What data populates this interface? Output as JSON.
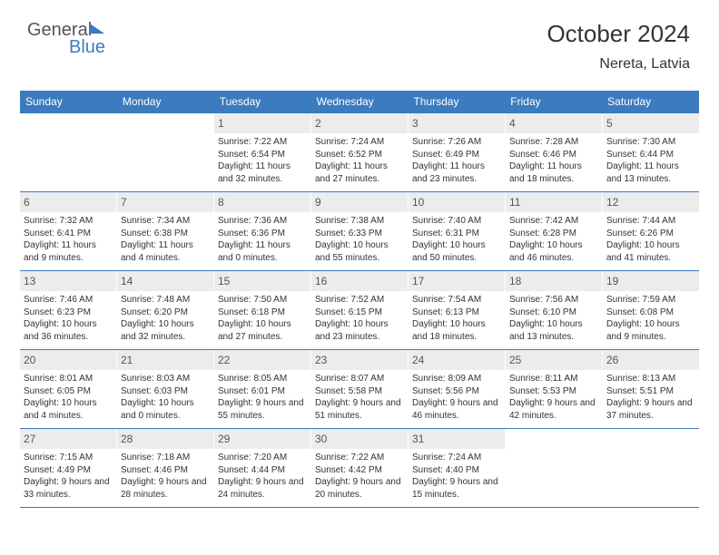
{
  "brand": {
    "part1": "General",
    "part2": "Blue"
  },
  "header": {
    "title": "October 2024",
    "location": "Nereta, Latvia"
  },
  "colors": {
    "accent": "#3b7bbf",
    "day_num_bg": "#ececec",
    "text": "#333333",
    "logo_gray": "#555555",
    "background": "#ffffff"
  },
  "days_of_week": [
    "Sunday",
    "Monday",
    "Tuesday",
    "Wednesday",
    "Thursday",
    "Friday",
    "Saturday"
  ],
  "weeks": [
    [
      {},
      {},
      {
        "n": "1",
        "sunrise": "Sunrise: 7:22 AM",
        "sunset": "Sunset: 6:54 PM",
        "daylight": "Daylight: 11 hours and 32 minutes."
      },
      {
        "n": "2",
        "sunrise": "Sunrise: 7:24 AM",
        "sunset": "Sunset: 6:52 PM",
        "daylight": "Daylight: 11 hours and 27 minutes."
      },
      {
        "n": "3",
        "sunrise": "Sunrise: 7:26 AM",
        "sunset": "Sunset: 6:49 PM",
        "daylight": "Daylight: 11 hours and 23 minutes."
      },
      {
        "n": "4",
        "sunrise": "Sunrise: 7:28 AM",
        "sunset": "Sunset: 6:46 PM",
        "daylight": "Daylight: 11 hours and 18 minutes."
      },
      {
        "n": "5",
        "sunrise": "Sunrise: 7:30 AM",
        "sunset": "Sunset: 6:44 PM",
        "daylight": "Daylight: 11 hours and 13 minutes."
      }
    ],
    [
      {
        "n": "6",
        "sunrise": "Sunrise: 7:32 AM",
        "sunset": "Sunset: 6:41 PM",
        "daylight": "Daylight: 11 hours and 9 minutes."
      },
      {
        "n": "7",
        "sunrise": "Sunrise: 7:34 AM",
        "sunset": "Sunset: 6:38 PM",
        "daylight": "Daylight: 11 hours and 4 minutes."
      },
      {
        "n": "8",
        "sunrise": "Sunrise: 7:36 AM",
        "sunset": "Sunset: 6:36 PM",
        "daylight": "Daylight: 11 hours and 0 minutes."
      },
      {
        "n": "9",
        "sunrise": "Sunrise: 7:38 AM",
        "sunset": "Sunset: 6:33 PM",
        "daylight": "Daylight: 10 hours and 55 minutes."
      },
      {
        "n": "10",
        "sunrise": "Sunrise: 7:40 AM",
        "sunset": "Sunset: 6:31 PM",
        "daylight": "Daylight: 10 hours and 50 minutes."
      },
      {
        "n": "11",
        "sunrise": "Sunrise: 7:42 AM",
        "sunset": "Sunset: 6:28 PM",
        "daylight": "Daylight: 10 hours and 46 minutes."
      },
      {
        "n": "12",
        "sunrise": "Sunrise: 7:44 AM",
        "sunset": "Sunset: 6:26 PM",
        "daylight": "Daylight: 10 hours and 41 minutes."
      }
    ],
    [
      {
        "n": "13",
        "sunrise": "Sunrise: 7:46 AM",
        "sunset": "Sunset: 6:23 PM",
        "daylight": "Daylight: 10 hours and 36 minutes."
      },
      {
        "n": "14",
        "sunrise": "Sunrise: 7:48 AM",
        "sunset": "Sunset: 6:20 PM",
        "daylight": "Daylight: 10 hours and 32 minutes."
      },
      {
        "n": "15",
        "sunrise": "Sunrise: 7:50 AM",
        "sunset": "Sunset: 6:18 PM",
        "daylight": "Daylight: 10 hours and 27 minutes."
      },
      {
        "n": "16",
        "sunrise": "Sunrise: 7:52 AM",
        "sunset": "Sunset: 6:15 PM",
        "daylight": "Daylight: 10 hours and 23 minutes."
      },
      {
        "n": "17",
        "sunrise": "Sunrise: 7:54 AM",
        "sunset": "Sunset: 6:13 PM",
        "daylight": "Daylight: 10 hours and 18 minutes."
      },
      {
        "n": "18",
        "sunrise": "Sunrise: 7:56 AM",
        "sunset": "Sunset: 6:10 PM",
        "daylight": "Daylight: 10 hours and 13 minutes."
      },
      {
        "n": "19",
        "sunrise": "Sunrise: 7:59 AM",
        "sunset": "Sunset: 6:08 PM",
        "daylight": "Daylight: 10 hours and 9 minutes."
      }
    ],
    [
      {
        "n": "20",
        "sunrise": "Sunrise: 8:01 AM",
        "sunset": "Sunset: 6:05 PM",
        "daylight": "Daylight: 10 hours and 4 minutes."
      },
      {
        "n": "21",
        "sunrise": "Sunrise: 8:03 AM",
        "sunset": "Sunset: 6:03 PM",
        "daylight": "Daylight: 10 hours and 0 minutes."
      },
      {
        "n": "22",
        "sunrise": "Sunrise: 8:05 AM",
        "sunset": "Sunset: 6:01 PM",
        "daylight": "Daylight: 9 hours and 55 minutes."
      },
      {
        "n": "23",
        "sunrise": "Sunrise: 8:07 AM",
        "sunset": "Sunset: 5:58 PM",
        "daylight": "Daylight: 9 hours and 51 minutes."
      },
      {
        "n": "24",
        "sunrise": "Sunrise: 8:09 AM",
        "sunset": "Sunset: 5:56 PM",
        "daylight": "Daylight: 9 hours and 46 minutes."
      },
      {
        "n": "25",
        "sunrise": "Sunrise: 8:11 AM",
        "sunset": "Sunset: 5:53 PM",
        "daylight": "Daylight: 9 hours and 42 minutes."
      },
      {
        "n": "26",
        "sunrise": "Sunrise: 8:13 AM",
        "sunset": "Sunset: 5:51 PM",
        "daylight": "Daylight: 9 hours and 37 minutes."
      }
    ],
    [
      {
        "n": "27",
        "sunrise": "Sunrise: 7:15 AM",
        "sunset": "Sunset: 4:49 PM",
        "daylight": "Daylight: 9 hours and 33 minutes."
      },
      {
        "n": "28",
        "sunrise": "Sunrise: 7:18 AM",
        "sunset": "Sunset: 4:46 PM",
        "daylight": "Daylight: 9 hours and 28 minutes."
      },
      {
        "n": "29",
        "sunrise": "Sunrise: 7:20 AM",
        "sunset": "Sunset: 4:44 PM",
        "daylight": "Daylight: 9 hours and 24 minutes."
      },
      {
        "n": "30",
        "sunrise": "Sunrise: 7:22 AM",
        "sunset": "Sunset: 4:42 PM",
        "daylight": "Daylight: 9 hours and 20 minutes."
      },
      {
        "n": "31",
        "sunrise": "Sunrise: 7:24 AM",
        "sunset": "Sunset: 4:40 PM",
        "daylight": "Daylight: 9 hours and 15 minutes."
      },
      {},
      {}
    ]
  ]
}
